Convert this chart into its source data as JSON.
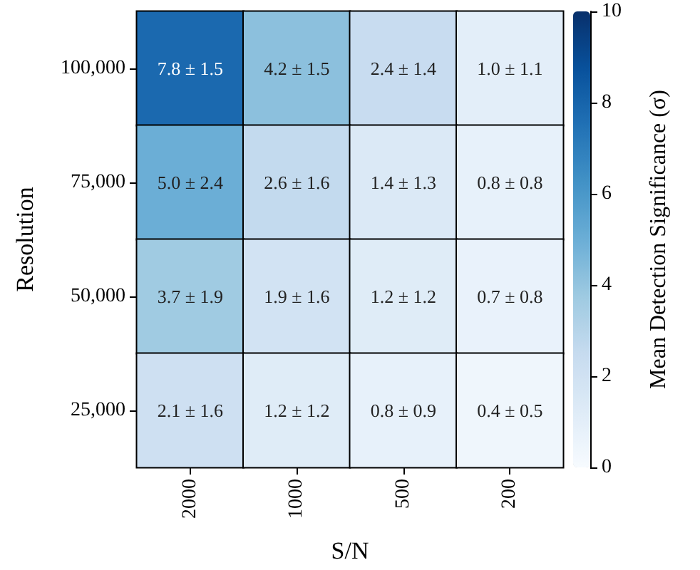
{
  "chart_data": {
    "type": "heatmap",
    "xlabel": "S/N",
    "ylabel": "Resolution",
    "clabel": "Mean Detection Significance (σ)",
    "categories": [
      "2000",
      "1000",
      "500",
      "200"
    ],
    "y_categories": [
      "100,000",
      "75,000",
      "50,000",
      "25,000"
    ],
    "cells": [
      [
        7.8,
        4.2,
        2.4,
        1.0
      ],
      [
        5.0,
        2.6,
        1.4,
        0.8
      ],
      [
        3.7,
        1.9,
        1.2,
        0.7
      ],
      [
        2.1,
        1.2,
        0.8,
        0.4
      ]
    ],
    "cell_labels": [
      [
        "7.8 ± 1.5",
        "4.2 ± 1.5",
        "2.4 ± 1.4",
        "1.0 ± 1.1"
      ],
      [
        "5.0 ± 2.4",
        "2.6 ± 1.6",
        "1.4 ± 1.3",
        "0.8 ± 0.8"
      ],
      [
        "3.7 ± 1.9",
        "1.9 ± 1.6",
        "1.2 ± 1.2",
        "0.7 ± 0.8"
      ],
      [
        "2.1 ± 1.6",
        "1.2 ± 1.2",
        "0.8 ± 0.9",
        "0.4 ± 0.5"
      ]
    ],
    "clim": [
      0,
      10
    ],
    "cticks": [
      0,
      2,
      4,
      6,
      8,
      10
    ]
  }
}
